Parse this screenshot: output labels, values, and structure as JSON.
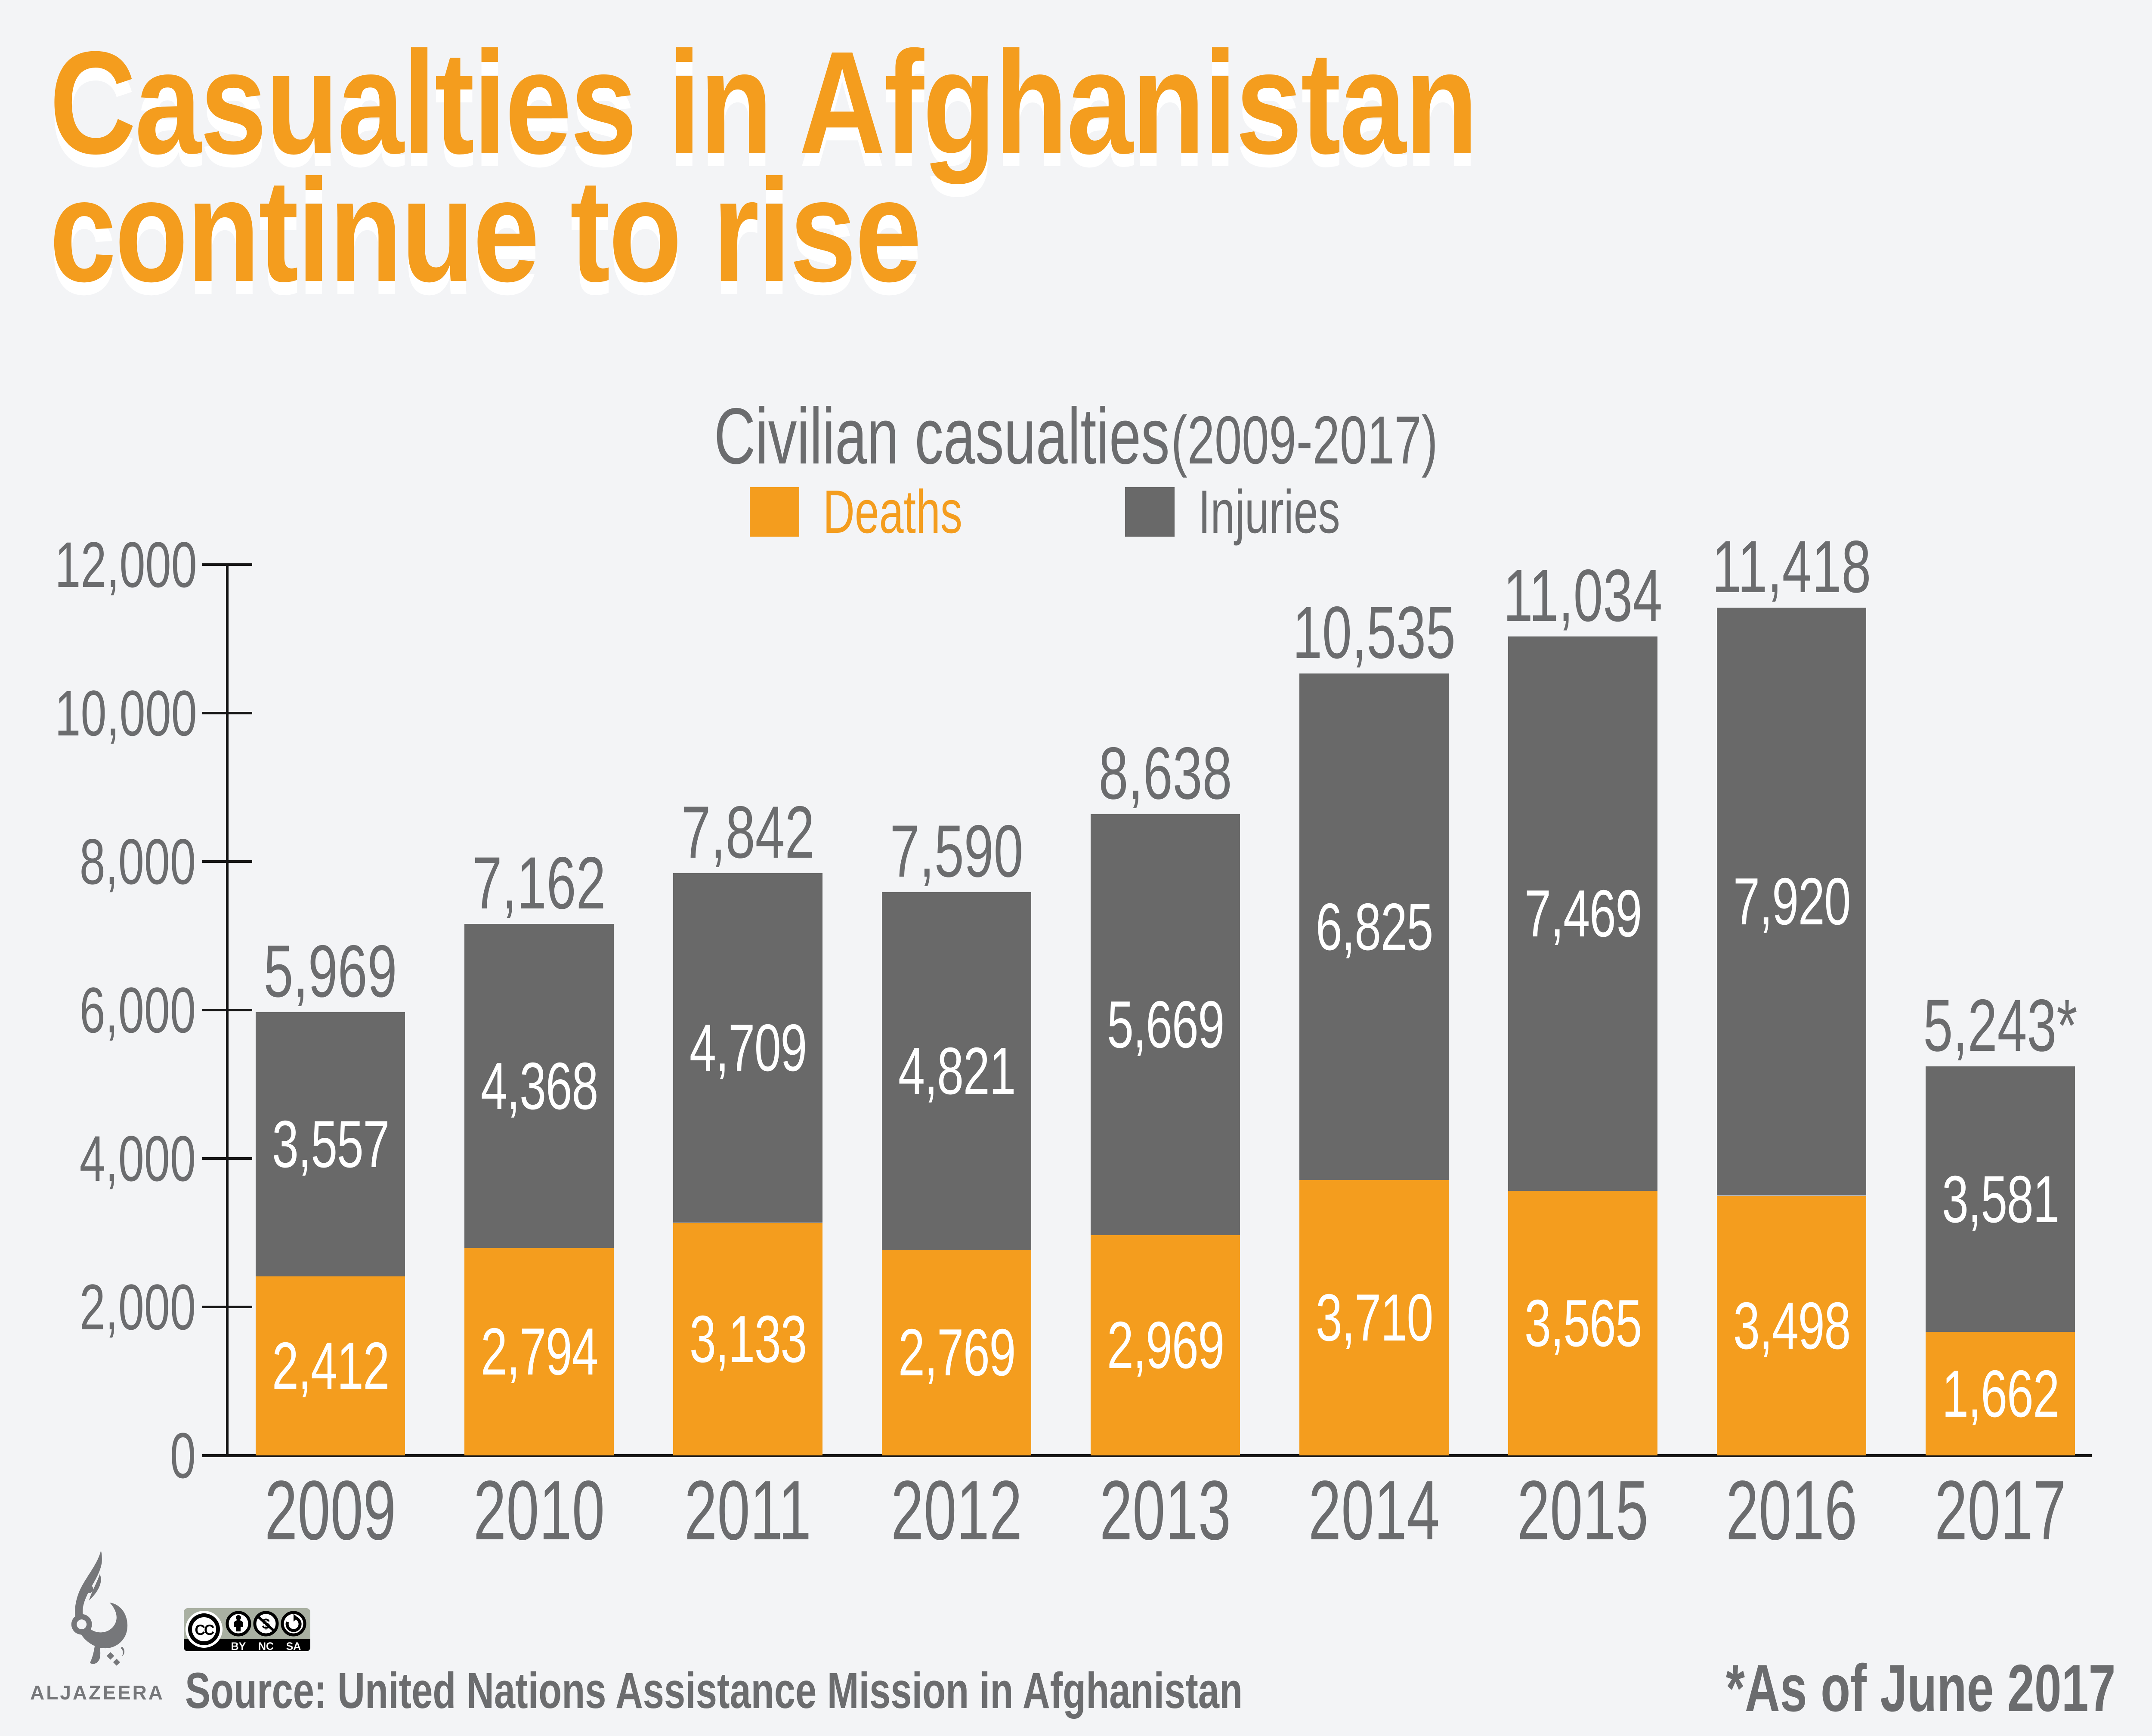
{
  "title": {
    "line1": "Casualties in Afghanistan",
    "line2": "continue to rise"
  },
  "chart_data": {
    "type": "bar",
    "stacked": true,
    "title": "Civilian casualties",
    "title_suffix": "(2009-2017)",
    "xlabel": "",
    "ylabel": "",
    "categories": [
      "2009",
      "2010",
      "2011",
      "2012",
      "2013",
      "2014",
      "2015",
      "2016",
      "2017"
    ],
    "series": [
      {
        "name": "Deaths",
        "color": "#F49D1E",
        "values": [
          2412,
          2794,
          3133,
          2769,
          2969,
          3710,
          3565,
          3498,
          1662
        ]
      },
      {
        "name": "Injuries",
        "color": "#696969",
        "values": [
          3557,
          4368,
          4709,
          4821,
          5669,
          6825,
          7469,
          7920,
          3581
        ]
      }
    ],
    "totals": [
      5969,
      7162,
      7842,
      7590,
      8638,
      10535,
      11034,
      11418,
      5243
    ],
    "totals_display": [
      "5,969",
      "7,162",
      "7,842",
      "7,590",
      "8,638",
      "10,535",
      "11,034",
      "11,418",
      "5,243*"
    ],
    "ylim": [
      0,
      12000
    ],
    "yticks": [
      {
        "value": 0,
        "label": "0"
      },
      {
        "value": 2000,
        "label": "2,000"
      },
      {
        "value": 4000,
        "label": "4,000"
      },
      {
        "value": 6000,
        "label": "6,000"
      },
      {
        "value": 8000,
        "label": "8,000"
      },
      {
        "value": 10000,
        "label": "10,000"
      },
      {
        "value": 12000,
        "label": "12,000"
      }
    ],
    "grid": false,
    "legend_position": "top"
  },
  "footer": {
    "wordmark": "ALJAZEERA",
    "source": "Source: United Nations Assistance Mission in Afghanistan",
    "footnote": "*As of June 2017",
    "cc_badge": {
      "cc": "CC",
      "by": "BY",
      "nc": "NC",
      "sa": "SA",
      "dollar": "$"
    }
  },
  "colors": {
    "background": "#F3F4F6",
    "orange": "#F49D1E",
    "bar_gray": "#696969",
    "text_gray": "#6B6C6E",
    "axis": "#161616",
    "logo_gray": "#76777A",
    "badge_bg": "#A9B0A2"
  }
}
